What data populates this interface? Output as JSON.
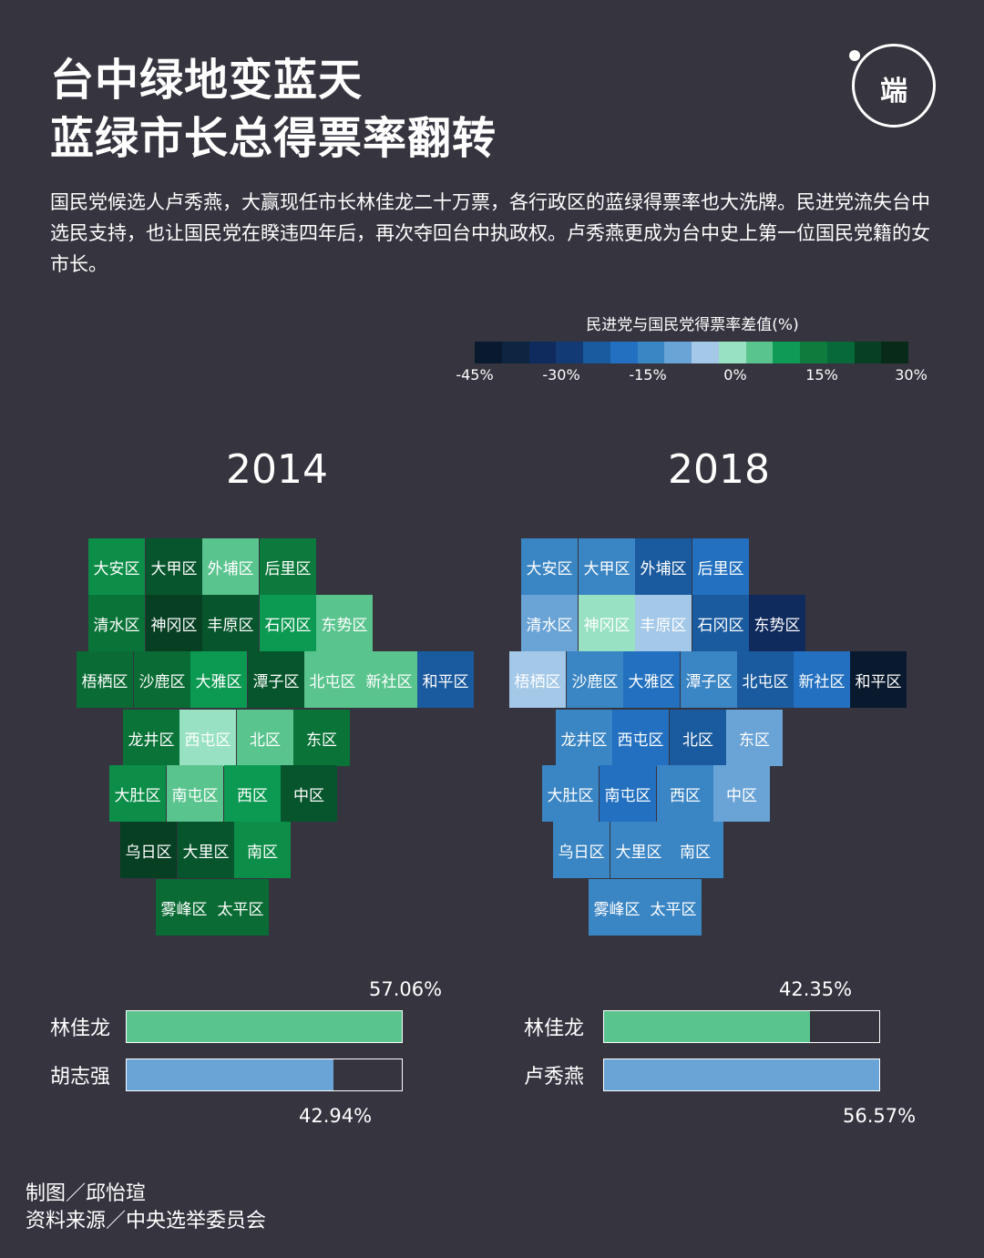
{
  "title": {
    "line1": "台中绿地变蓝天",
    "line2": "蓝绿市长总得票率翻转"
  },
  "logo": {
    "text": "端"
  },
  "description": "国民党候选人卢秀燕，大赢现任市长林佳龙二十万票，各行政区的蓝绿得票率也大洗牌。民进党流失台中选民支持，也让国民党在睽违四年后，再次夺回台中执政权。卢秀燕更成为台中史上第一位国民党籍的女市长。",
  "legend": {
    "title": "民进党与国民党得票率差值(%)",
    "colors": [
      "#0a1a2e",
      "#0d2540",
      "#0f2a5c",
      "#123a75",
      "#1a5a9e",
      "#2270bf",
      "#3a85c4",
      "#6aa3d6",
      "#a4c8e8",
      "#98e1c2",
      "#5ac48e",
      "#0f9a56",
      "#0d7c3d",
      "#07683a",
      "#063f22",
      "#072b18"
    ],
    "ticks": [
      "-45%",
      "-30%",
      "-15%",
      "0%",
      "15%",
      "30%"
    ]
  },
  "maps": [
    {
      "year": "2014",
      "cells": [
        {
          "name": "大安区",
          "color": "#0c8e48"
        },
        {
          "name": "大甲区",
          "color": "#07552d"
        },
        {
          "name": "外埔区",
          "color": "#5ac48e"
        },
        {
          "name": "后里区",
          "color": "#0c7a3c"
        },
        {
          "name": "清水区",
          "color": "#0a7338"
        },
        {
          "name": "神冈区",
          "color": "#063f22"
        },
        {
          "name": "丰原区",
          "color": "#07552d"
        },
        {
          "name": "石冈区",
          "color": "#0c9a52"
        },
        {
          "name": "东势区",
          "color": "#5ac48e"
        },
        {
          "name": "梧栖区",
          "color": "#0a6b34"
        },
        {
          "name": "沙鹿区",
          "color": "#0a6b34"
        },
        {
          "name": "大雅区",
          "color": "#0c9a52"
        },
        {
          "name": "潭子区",
          "color": "#07552d"
        },
        {
          "name": "北屯区",
          "color": "#5ac48e"
        },
        {
          "name": "新社区",
          "color": "#5ac48e"
        },
        {
          "name": "和平区",
          "color": "#1a5a9e"
        },
        {
          "name": "龙井区",
          "color": "#0a7338"
        },
        {
          "name": "西屯区",
          "color": "#98e1c2"
        },
        {
          "name": "北区",
          "color": "#5ac48e"
        },
        {
          "name": "东区",
          "color": "#0a7338"
        },
        {
          "name": "大肚区",
          "color": "#0c8e48"
        },
        {
          "name": "南屯区",
          "color": "#5ac48e"
        },
        {
          "name": "西区",
          "color": "#0c9a52"
        },
        {
          "name": "中区",
          "color": "#07552d"
        },
        {
          "name": "乌日区",
          "color": "#063f22"
        },
        {
          "name": "大里区",
          "color": "#07552d"
        },
        {
          "name": "南区",
          "color": "#0c8e48"
        },
        {
          "name": "雾峰区",
          "color": "#0a6b34"
        },
        {
          "name": "太平区",
          "color": "#0a6b34"
        }
      ],
      "bars": [
        {
          "name": "林佳龙",
          "value": 57.06,
          "label": "57.06%",
          "color": "#5ac48e"
        },
        {
          "name": "胡志强",
          "value": 42.94,
          "label": "42.94%",
          "color": "#6aa3d6"
        }
      ]
    },
    {
      "year": "2018",
      "cells": [
        {
          "name": "大安区",
          "color": "#3a85c4"
        },
        {
          "name": "大甲区",
          "color": "#3a85c4"
        },
        {
          "name": "外埔区",
          "color": "#1a5a9e"
        },
        {
          "name": "后里区",
          "color": "#2270bf"
        },
        {
          "name": "清水区",
          "color": "#6aa3d6"
        },
        {
          "name": "神冈区",
          "color": "#98e1c2"
        },
        {
          "name": "丰原区",
          "color": "#a4c8e8"
        },
        {
          "name": "石冈区",
          "color": "#1a5a9e"
        },
        {
          "name": "东势区",
          "color": "#0f2a5c"
        },
        {
          "name": "梧栖区",
          "color": "#a4c8e8"
        },
        {
          "name": "沙鹿区",
          "color": "#3a85c4"
        },
        {
          "name": "大雅区",
          "color": "#2270bf"
        },
        {
          "name": "潭子区",
          "color": "#3a85c4"
        },
        {
          "name": "北屯区",
          "color": "#1a5a9e"
        },
        {
          "name": "新社区",
          "color": "#2270bf"
        },
        {
          "name": "和平区",
          "color": "#0a1a2e"
        },
        {
          "name": "龙井区",
          "color": "#3a85c4"
        },
        {
          "name": "西屯区",
          "color": "#2270bf"
        },
        {
          "name": "北区",
          "color": "#1a5a9e"
        },
        {
          "name": "东区",
          "color": "#6aa3d6"
        },
        {
          "name": "大肚区",
          "color": "#3a85c4"
        },
        {
          "name": "南屯区",
          "color": "#2270bf"
        },
        {
          "name": "西区",
          "color": "#3a85c4"
        },
        {
          "name": "中区",
          "color": "#6aa3d6"
        },
        {
          "name": "乌日区",
          "color": "#3a85c4"
        },
        {
          "name": "大里区",
          "color": "#3a85c4"
        },
        {
          "name": "南区",
          "color": "#3a85c4"
        },
        {
          "name": "雾峰区",
          "color": "#3a85c4"
        },
        {
          "name": "太平区",
          "color": "#3a85c4"
        }
      ],
      "bars": [
        {
          "name": "林佳龙",
          "value": 42.35,
          "label": "42.35%",
          "color": "#5ac48e"
        },
        {
          "name": "卢秀燕",
          "value": 56.57,
          "label": "56.57%",
          "color": "#6aa3d6"
        }
      ]
    }
  ],
  "credits": {
    "author": "制图／邱怡瑄",
    "source": "资料来源／中央选举委员会"
  }
}
